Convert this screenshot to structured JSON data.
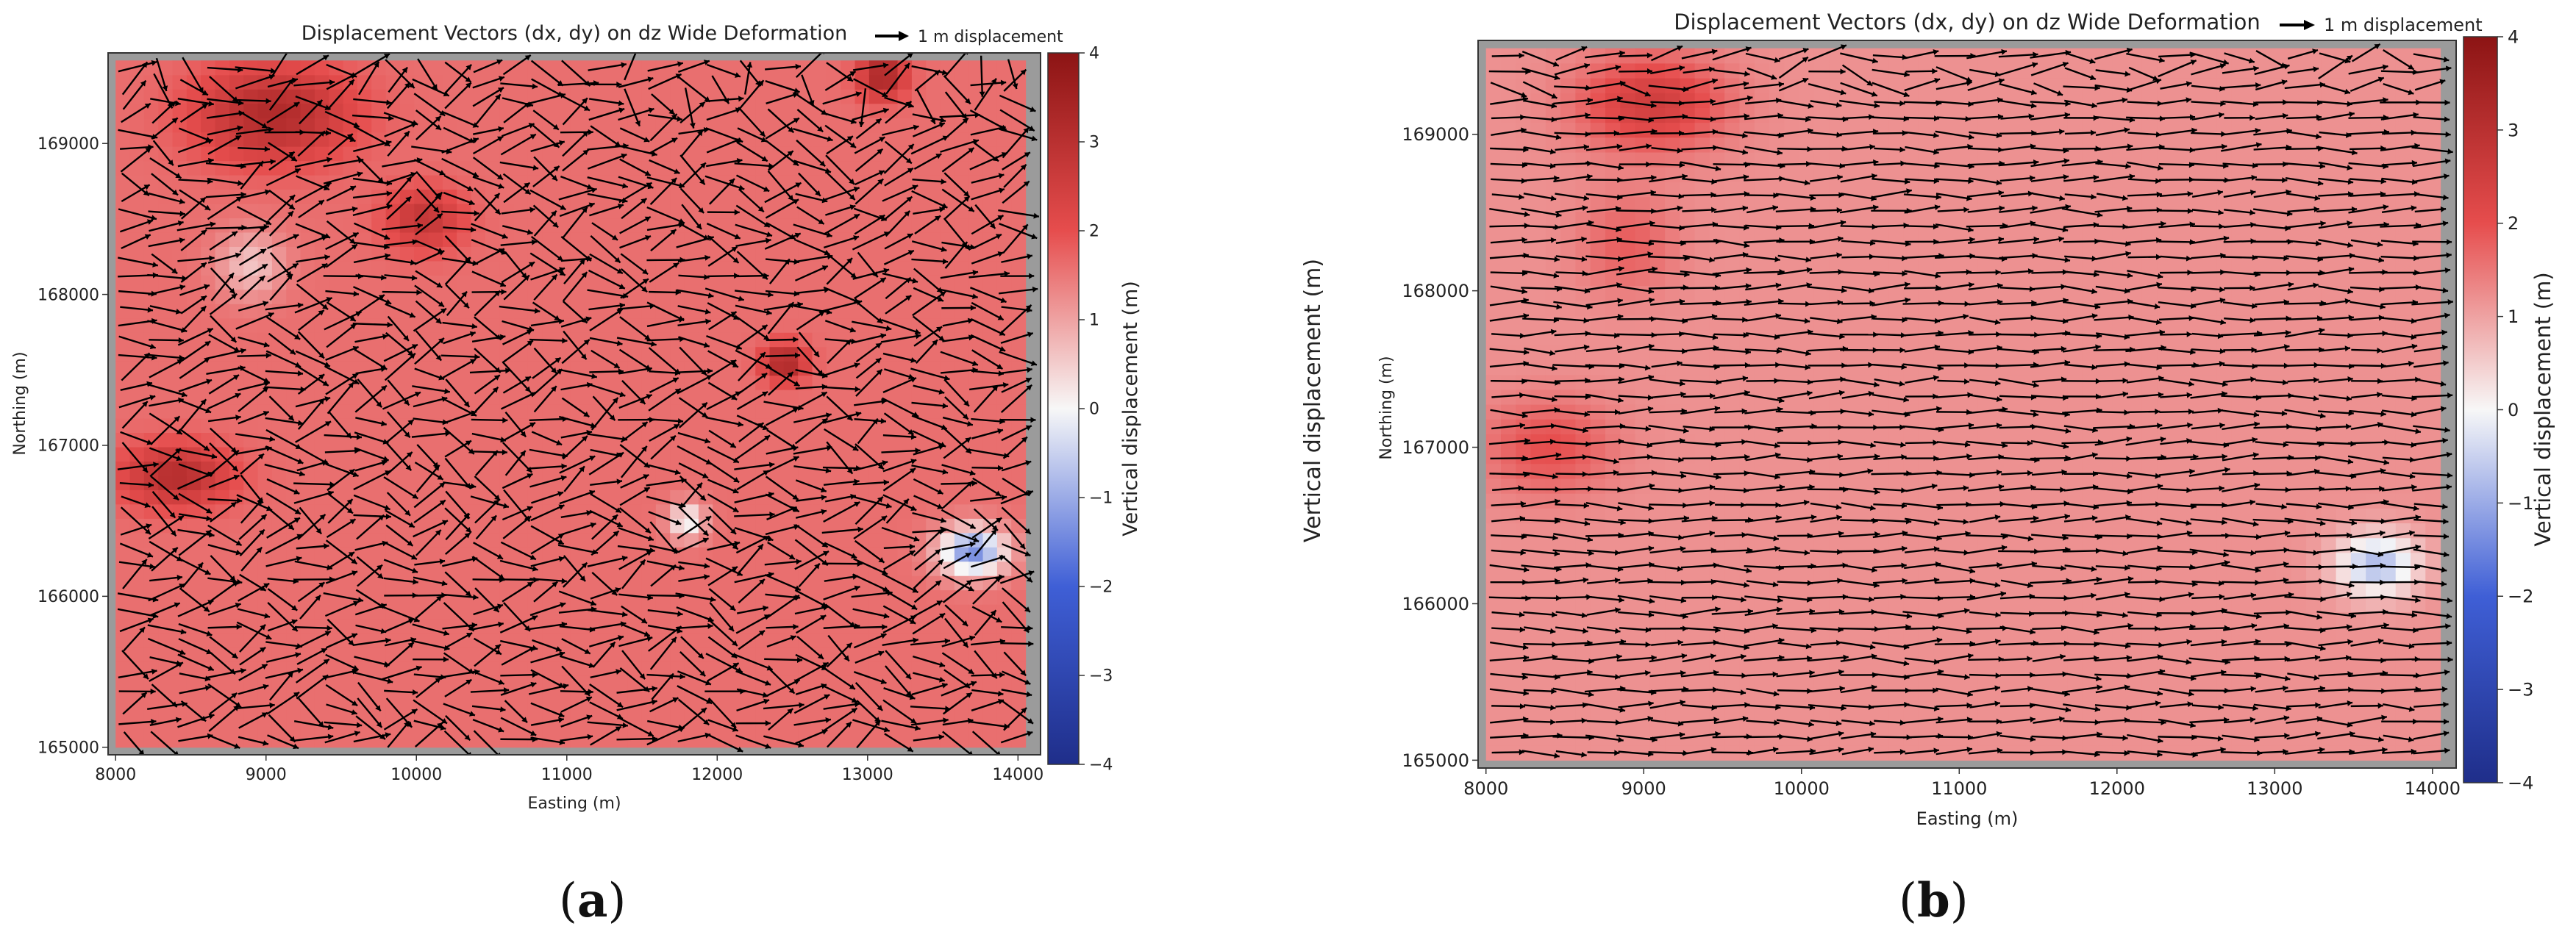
{
  "chart_data": [
    {
      "type": "quiver",
      "panel_label": "a",
      "title": "Displacement Vectors (dx, dy) on dz Wide Deformation",
      "quiver_key": "1 m displacement",
      "xlabel": "Easting (m)",
      "ylabel": "Northing (m)",
      "colorbar_label": "Vertical displacement (m)",
      "xlim": [
        7950,
        14150
      ],
      "ylim": [
        164950,
        169600
      ],
      "x_ticks": [
        8000,
        9000,
        10000,
        11000,
        12000,
        13000,
        14000
      ],
      "x_tick_labels": [
        "8000",
        "9000",
        "10000",
        "11000",
        "12000",
        "13000",
        "14000"
      ],
      "y_ticks": [
        165000,
        166000,
        167000,
        168000,
        169000
      ],
      "y_tick_labels": [
        "165000",
        "166000",
        "167000",
        "168000",
        "169000"
      ],
      "colorbar_range": [
        -4,
        4
      ],
      "colorbar_ticks": [
        -4,
        -3,
        -2,
        -1,
        0,
        1,
        2,
        3,
        4
      ],
      "colorbar_tick_labels": [
        "−4",
        "−3",
        "−2",
        "−1",
        "0",
        "1",
        "2",
        "3",
        "4"
      ],
      "colormap": "bwr",
      "grid": false,
      "field": {
        "base_dz": 1.6,
        "dominant_direction": "east",
        "vector_noise": "high",
        "anomalies": [
          {
            "x": 13700,
            "y": 166300,
            "dz": -3.0,
            "sx": 220,
            "sy": 160
          },
          {
            "x": 11800,
            "y": 166500,
            "dz": -1.7,
            "sx": 120,
            "sy": 120
          },
          {
            "x": 9050,
            "y": 169200,
            "dz": 1.6,
            "sx": 500,
            "sy": 300
          },
          {
            "x": 8400,
            "y": 166800,
            "dz": 1.5,
            "sx": 350,
            "sy": 200
          },
          {
            "x": 12450,
            "y": 167550,
            "dz": 1.8,
            "sx": 140,
            "sy": 120
          },
          {
            "x": 13100,
            "y": 169450,
            "dz": 1.8,
            "sx": 150,
            "sy": 150
          },
          {
            "x": 10050,
            "y": 168500,
            "dz": 1.2,
            "sx": 250,
            "sy": 200
          },
          {
            "x": 8900,
            "y": 168200,
            "dz": -1.0,
            "sx": 220,
            "sy": 220
          }
        ]
      }
    },
    {
      "type": "quiver",
      "panel_label": "b",
      "title": "Displacement Vectors (dx, dy) on dz Wide Deformation",
      "quiver_key": "1 m displacement",
      "xlabel": "Easting (m)",
      "ylabel": "Northing (m)",
      "colorbar_label": "Vertical displacement (m)",
      "outer_label": "Vertical displacement (m)",
      "xlim": [
        7950,
        14150
      ],
      "ylim": [
        164950,
        169600
      ],
      "x_ticks": [
        8000,
        9000,
        10000,
        11000,
        12000,
        13000,
        14000
      ],
      "x_tick_labels": [
        "8000",
        "9000",
        "10000",
        "11000",
        "12000",
        "13000",
        "14000"
      ],
      "y_ticks": [
        165000,
        166000,
        167000,
        168000,
        169000
      ],
      "y_tick_labels": [
        "165000",
        "166000",
        "167000",
        "168000",
        "169000"
      ],
      "colorbar_range": [
        -4,
        4
      ],
      "colorbar_ticks": [
        -4,
        -3,
        -2,
        -1,
        0,
        1,
        2,
        3,
        4
      ],
      "colorbar_tick_labels": [
        "−4",
        "−3",
        "−2",
        "−1",
        "0",
        "1",
        "2",
        "3",
        "4"
      ],
      "colormap": "bwr",
      "grid": false,
      "field": {
        "base_dz": 1.2,
        "dominant_direction": "east",
        "vector_noise": "low",
        "anomalies": [
          {
            "x": 13650,
            "y": 166250,
            "dz": -2.0,
            "sx": 260,
            "sy": 200
          },
          {
            "x": 9050,
            "y": 169200,
            "dz": 1.3,
            "sx": 450,
            "sy": 300
          },
          {
            "x": 8400,
            "y": 167000,
            "dz": 0.8,
            "sx": 400,
            "sy": 300
          },
          {
            "x": 8900,
            "y": 168300,
            "dz": 0.6,
            "sx": 300,
            "sy": 300
          }
        ]
      }
    }
  ]
}
